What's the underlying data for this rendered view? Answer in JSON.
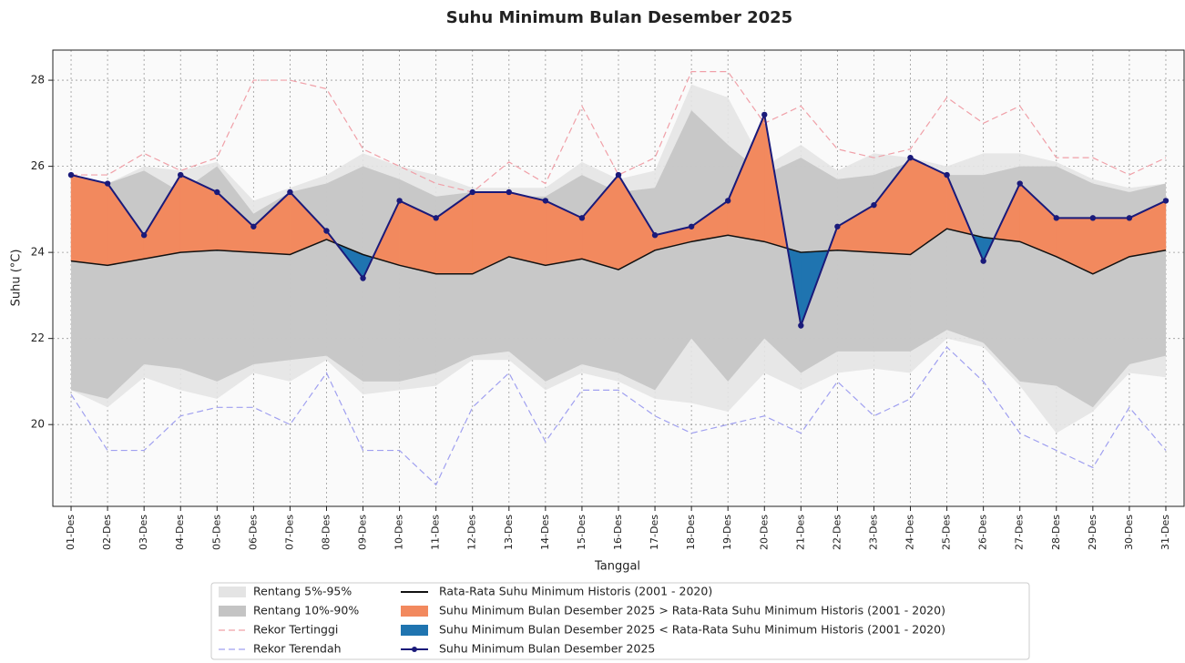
{
  "chart_data": {
    "type": "line",
    "title": "Suhu Minimum Bulan Desember 2025",
    "xlabel": "Tanggal",
    "ylabel": "Suhu (°C)",
    "categories": [
      "01-Des",
      "02-Des",
      "03-Des",
      "04-Des",
      "05-Des",
      "06-Des",
      "07-Des",
      "08-Des",
      "09-Des",
      "10-Des",
      "11-Des",
      "12-Des",
      "13-Des",
      "14-Des",
      "15-Des",
      "16-Des",
      "17-Des",
      "18-Des",
      "19-Des",
      "20-Des",
      "21-Des",
      "22-Des",
      "23-Des",
      "24-Des",
      "25-Des",
      "26-Des",
      "27-Des",
      "28-Des",
      "29-Des",
      "30-Des",
      "31-Des"
    ],
    "ylim": [
      18.1,
      28.7
    ],
    "yticks": [
      20,
      22,
      24,
      26,
      28
    ],
    "grid": true,
    "bands": [
      {
        "name": "Rentang 5%-95%",
        "color": "#e4e4e4",
        "upper": [
          25.8,
          25.6,
          26.0,
          25.9,
          26.1,
          25.2,
          25.5,
          25.8,
          26.3,
          26.0,
          25.8,
          25.5,
          25.5,
          25.5,
          26.1,
          25.7,
          25.9,
          27.9,
          27.6,
          26.0,
          26.5,
          25.9,
          26.3,
          26.2,
          26.0,
          26.3,
          26.3,
          26.1,
          25.7,
          25.5,
          25.6
        ],
        "lower": [
          20.8,
          20.4,
          21.1,
          20.8,
          20.6,
          21.2,
          21.0,
          21.5,
          20.7,
          20.8,
          20.9,
          21.5,
          21.5,
          20.8,
          21.2,
          21.0,
          20.6,
          20.5,
          20.3,
          21.2,
          20.8,
          21.2,
          21.3,
          21.2,
          22.0,
          21.8,
          20.9,
          19.8,
          20.3,
          21.2,
          21.1
        ]
      },
      {
        "name": "Rentang 10%-90%",
        "color": "#c4c4c4",
        "upper": [
          25.7,
          25.6,
          25.9,
          25.4,
          26.0,
          24.9,
          25.4,
          25.6,
          26.0,
          25.7,
          25.3,
          25.4,
          25.3,
          25.3,
          25.8,
          25.4,
          25.5,
          27.3,
          26.5,
          25.8,
          26.2,
          25.7,
          25.8,
          26.1,
          25.8,
          25.8,
          26.0,
          26.0,
          25.6,
          25.4,
          25.6
        ],
        "lower": [
          20.8,
          20.6,
          21.4,
          21.3,
          21.0,
          21.4,
          21.5,
          21.6,
          21.0,
          21.0,
          21.2,
          21.6,
          21.7,
          21.0,
          21.4,
          21.2,
          20.8,
          22.0,
          21.0,
          22.0,
          21.2,
          21.7,
          21.7,
          21.7,
          22.2,
          21.9,
          21.0,
          20.9,
          20.4,
          21.4,
          21.6
        ]
      }
    ],
    "series": [
      {
        "name": "Rekor Tertinggi",
        "color": "#f0a0a8",
        "dashed": true,
        "values": [
          25.8,
          25.8,
          26.3,
          25.9,
          26.2,
          28.0,
          28.0,
          27.8,
          26.4,
          26.0,
          25.6,
          25.4,
          26.1,
          25.6,
          27.4,
          25.8,
          26.2,
          28.2,
          28.2,
          27.0,
          27.4,
          26.4,
          26.2,
          26.4,
          27.6,
          27.0,
          27.4,
          26.2,
          26.2,
          25.8,
          26.2
        ]
      },
      {
        "name": "Rekor Terendah",
        "color": "#a0a0f0",
        "dashed": true,
        "values": [
          20.7,
          19.4,
          19.4,
          20.2,
          20.4,
          20.4,
          20.0,
          21.2,
          19.4,
          19.4,
          18.6,
          20.4,
          21.2,
          19.6,
          20.8,
          20.8,
          20.2,
          19.8,
          20.0,
          20.2,
          19.8,
          21.0,
          20.2,
          20.6,
          21.8,
          21.0,
          19.8,
          19.4,
          19.0,
          20.4,
          19.4
        ]
      },
      {
        "name": "Rata-Rata Suhu Minimum Historis (2001 - 2020)",
        "color": "#111111",
        "values": [
          23.8,
          23.7,
          23.85,
          24.0,
          24.05,
          24.0,
          23.95,
          24.3,
          23.95,
          23.7,
          23.5,
          23.5,
          23.9,
          23.7,
          23.85,
          23.6,
          24.05,
          24.25,
          24.4,
          24.25,
          24.0,
          24.05,
          24.0,
          23.95,
          24.55,
          24.35,
          24.25,
          23.9,
          23.5,
          23.9,
          24.05
        ]
      },
      {
        "name": "Suhu Minimum Bulan Desember 2025",
        "color": "#1a1a7a",
        "markers": true,
        "values": [
          25.8,
          25.6,
          24.4,
          25.8,
          25.4,
          24.6,
          25.4,
          24.5,
          23.4,
          25.2,
          24.8,
          25.4,
          25.4,
          25.2,
          24.8,
          25.8,
          24.4,
          24.6,
          25.2,
          27.2,
          22.3,
          24.6,
          25.1,
          26.2,
          25.8,
          23.8,
          25.6,
          24.8,
          24.8,
          24.8,
          25.2
        ]
      }
    ],
    "fills": [
      {
        "name": "Suhu Minimum Bulan Desember 2025 > Rata-Rata Suhu Minimum Historis (2001 - 2020)",
        "color": "#f2895e"
      },
      {
        "name": "Suhu Minimum Bulan Desember 2025 < Rata-Rata Suhu Minimum Historis (2001 - 2020)",
        "color": "#1f74b0"
      }
    ]
  }
}
